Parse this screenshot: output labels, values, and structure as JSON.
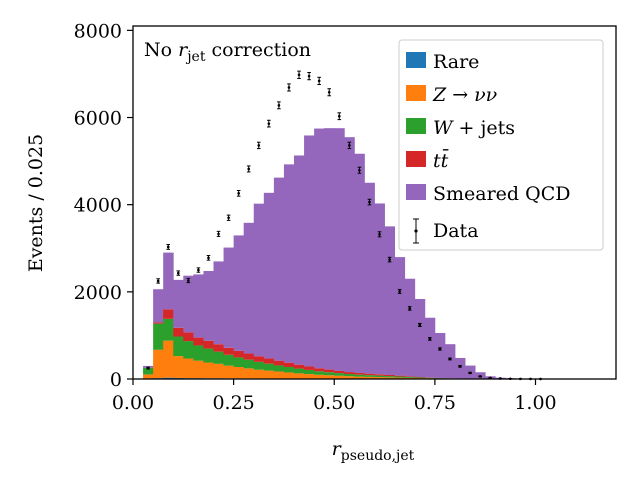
{
  "chart_data": {
    "type": "bar",
    "stacked": true,
    "bin_width": 0.025,
    "xlim": [
      0,
      1.2
    ],
    "ylim": [
      0,
      8100
    ],
    "xticks": [
      0.0,
      0.25,
      0.5,
      0.75,
      1.0
    ],
    "xtick_labels": [
      "0.00",
      "0.25",
      "0.50",
      "0.75",
      "1.00"
    ],
    "yticks": [
      0,
      2000,
      4000,
      6000,
      8000
    ],
    "ytick_labels": [
      "0",
      "2000",
      "4000",
      "6000",
      "8000"
    ],
    "xlabel": {
      "base": "r",
      "sub": "pseudo,jet"
    },
    "ylabel": "Events / 0.025",
    "annotation": {
      "prefix": "No ",
      "r": "r",
      "sub": "jet",
      "suffix": " correction"
    },
    "legend_position": "top-right",
    "legend": [
      {
        "key": "rare",
        "label": "Rare",
        "color": "#1f77b4",
        "kind": "patch"
      },
      {
        "key": "zvv",
        "label_parts": [
          "Z",
          "→",
          "νν"
        ],
        "color": "#ff7f0e",
        "kind": "patch"
      },
      {
        "key": "wjets",
        "label_parts": [
          "W",
          "+ jets"
        ],
        "color": "#2ca02c",
        "kind": "patch"
      },
      {
        "key": "ttbar",
        "label_parts": [
          "t",
          "t̄"
        ],
        "color": "#d62728",
        "kind": "patch"
      },
      {
        "key": "qcd",
        "label": "Smeared QCD",
        "color": "#9467bd",
        "kind": "patch"
      },
      {
        "key": "data",
        "label": "Data",
        "color": "#000000",
        "kind": "errorbar"
      }
    ],
    "bin_edges": [
      0.025,
      0.05,
      0.075,
      0.1,
      0.125,
      0.15,
      0.175,
      0.2,
      0.225,
      0.25,
      0.275,
      0.3,
      0.325,
      0.35,
      0.375,
      0.4,
      0.425,
      0.45,
      0.475,
      0.5,
      0.525,
      0.55,
      0.575,
      0.6,
      0.625,
      0.65,
      0.675,
      0.7,
      0.725,
      0.75,
      0.775,
      0.8,
      0.825,
      0.85,
      0.875,
      0.9,
      0.925,
      0.95,
      0.975,
      1.0,
      1.025
    ],
    "series": [
      {
        "name": "Rare",
        "key": "rare",
        "color": "#1f77b4",
        "values": [
          5,
          20,
          30,
          25,
          20,
          20,
          18,
          18,
          16,
          15,
          14,
          13,
          12,
          11,
          10,
          9,
          8,
          7,
          6,
          5,
          4,
          4,
          3,
          3,
          2,
          2,
          1,
          1,
          1,
          0,
          0,
          0,
          0,
          0,
          0,
          0,
          0,
          0,
          0,
          0
        ]
      },
      {
        "name": "Z → νν",
        "key": "zvv",
        "color": "#ff7f0e",
        "values": [
          100,
          650,
          850,
          500,
          450,
          400,
          360,
          330,
          290,
          260,
          230,
          200,
          180,
          160,
          140,
          120,
          105,
          90,
          80,
          70,
          60,
          50,
          45,
          40,
          35,
          30,
          25,
          20,
          15,
          10,
          8,
          5,
          3,
          2,
          1,
          0,
          0,
          0,
          0,
          0
        ]
      },
      {
        "name": "W + jets",
        "key": "wjets",
        "color": "#2ca02c",
        "values": [
          150,
          600,
          500,
          450,
          400,
          350,
          320,
          280,
          250,
          220,
          200,
          180,
          160,
          140,
          125,
          110,
          95,
          80,
          70,
          60,
          50,
          45,
          40,
          35,
          30,
          25,
          20,
          15,
          12,
          10,
          7,
          5,
          3,
          2,
          1,
          0,
          0,
          0,
          0,
          0
        ]
      },
      {
        "name": "tt̄",
        "key": "ttbar",
        "color": "#d62728",
        "values": [
          0,
          30,
          220,
          200,
          200,
          180,
          180,
          170,
          160,
          150,
          140,
          130,
          120,
          110,
          100,
          90,
          80,
          70,
          60,
          50,
          45,
          40,
          35,
          30,
          25,
          20,
          15,
          10,
          8,
          5,
          4,
          3,
          2,
          1,
          0,
          0,
          0,
          0,
          0,
          0
        ]
      },
      {
        "name": "Smeared QCD",
        "key": "qcd",
        "color": "#9467bd",
        "values": [
          45,
          760,
          1300,
          1100,
          1300,
          1450,
          1600,
          1900,
          2300,
          2650,
          3000,
          3500,
          3800,
          4200,
          4550,
          4800,
          5300,
          5500,
          5540,
          5570,
          5390,
          5030,
          4380,
          3920,
          3410,
          2720,
          2240,
          1790,
          1370,
          1030,
          780,
          470,
          300,
          150,
          60,
          30,
          20,
          10,
          5,
          3
        ]
      }
    ],
    "data_points": {
      "name": "Data",
      "x": [
        0.0375,
        0.0625,
        0.0875,
        0.1125,
        0.1375,
        0.1625,
        0.1875,
        0.2125,
        0.2375,
        0.2625,
        0.2875,
        0.3125,
        0.3375,
        0.3625,
        0.3875,
        0.4125,
        0.4375,
        0.4625,
        0.4875,
        0.5125,
        0.5375,
        0.5625,
        0.5875,
        0.6125,
        0.6375,
        0.6625,
        0.6875,
        0.7125,
        0.7375,
        0.7625,
        0.7875,
        0.8125,
        0.8375,
        0.8625,
        0.8875,
        0.9125,
        0.9375,
        0.9625,
        0.9875,
        1.0125
      ],
      "y": [
        250,
        2250,
        3030,
        2430,
        2260,
        2500,
        2780,
        3330,
        3700,
        4260,
        4820,
        5360,
        5860,
        6280,
        6690,
        6980,
        6950,
        6840,
        6580,
        6030,
        5360,
        4790,
        4060,
        3320,
        2740,
        2010,
        1620,
        1240,
        920,
        690,
        460,
        290,
        140,
        60,
        25,
        12,
        6,
        3,
        2,
        1
      ],
      "yerr": [
        20,
        50,
        55,
        50,
        48,
        50,
        53,
        58,
        61,
        65,
        69,
        73,
        77,
        79,
        82,
        84,
        83,
        83,
        81,
        78,
        73,
        69,
        64,
        58,
        52,
        45,
        40,
        35,
        30,
        26,
        21,
        17,
        12,
        8,
        5,
        3,
        2,
        2,
        1,
        1
      ]
    }
  }
}
